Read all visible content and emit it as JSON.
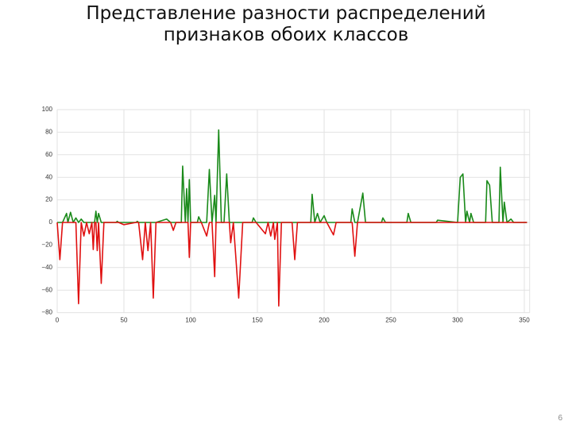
{
  "chart_data": {
    "type": "line",
    "title": "Представление разности распределений признаков обоих классов",
    "x": [
      0,
      2,
      4,
      7,
      8,
      10,
      12,
      14,
      16,
      18,
      20,
      22,
      24,
      26,
      27,
      28,
      29,
      30,
      31,
      33,
      35,
      44,
      45,
      46,
      50,
      59,
      60,
      61,
      64,
      66,
      68,
      70,
      72,
      74,
      82,
      85,
      87,
      89,
      93,
      94,
      96,
      97,
      98,
      99,
      100,
      105,
      106,
      108,
      112,
      114,
      116,
      118,
      119,
      121,
      123,
      125,
      127,
      129,
      130,
      132,
      136,
      139,
      146,
      147,
      149,
      156,
      158,
      160,
      162,
      163,
      165,
      166,
      168,
      176,
      178,
      180,
      190,
      191,
      193,
      195,
      197,
      200,
      202,
      207,
      209,
      220,
      221,
      223,
      225,
      229,
      231,
      243,
      244,
      246,
      262,
      263,
      265,
      284,
      285,
      300,
      302,
      304,
      306,
      307,
      309,
      310,
      312,
      321,
      322,
      324,
      326,
      331,
      332,
      334,
      335,
      337,
      340,
      342,
      352
    ],
    "series": [
      {
        "color": "#1a8a1a",
        "values": [
          0,
          0,
          0,
          8,
          0,
          9,
          0,
          4,
          0,
          3,
          0,
          0,
          0,
          0,
          0,
          0,
          10,
          0,
          8,
          0,
          0,
          0,
          1,
          0,
          0,
          0,
          1,
          0,
          0,
          0,
          0,
          0,
          0,
          0,
          3,
          0,
          0,
          0,
          0,
          50,
          0,
          30,
          0,
          38,
          0,
          0,
          5,
          0,
          0,
          47,
          0,
          24,
          0,
          82,
          0,
          0,
          43,
          0,
          0,
          0,
          0,
          0,
          0,
          4,
          0,
          0,
          0,
          0,
          0,
          0,
          0,
          0,
          0,
          0,
          0,
          0,
          0,
          25,
          0,
          8,
          0,
          6,
          0,
          0,
          0,
          0,
          12,
          0,
          0,
          26,
          0,
          0,
          4,
          0,
          0,
          8,
          0,
          0,
          2,
          0,
          40,
          43,
          0,
          10,
          0,
          8,
          0,
          0,
          37,
          33,
          0,
          0,
          49,
          0,
          18,
          0,
          3,
          0,
          0
        ]
      },
      {
        "color": "#e01010",
        "values": [
          0,
          -33,
          0,
          0,
          0,
          0,
          0,
          0,
          -72,
          0,
          -12,
          0,
          -10,
          0,
          -24,
          0,
          0,
          -25,
          0,
          -54,
          0,
          0,
          0,
          0,
          -2,
          0,
          0,
          0,
          -33,
          0,
          -25,
          0,
          -67,
          0,
          0,
          0,
          -7,
          0,
          0,
          0,
          0,
          0,
          0,
          -31,
          0,
          0,
          0,
          0,
          -12,
          0,
          0,
          -48,
          0,
          0,
          0,
          0,
          0,
          0,
          -18,
          0,
          -67,
          0,
          0,
          0,
          0,
          -10,
          0,
          -12,
          0,
          -15,
          0,
          -74,
          0,
          0,
          -33,
          0,
          0,
          0,
          0,
          0,
          0,
          0,
          0,
          -11,
          0,
          0,
          0,
          -30,
          0,
          0,
          0,
          0,
          0,
          0,
          0,
          0,
          0,
          0,
          0,
          0,
          0,
          0,
          0,
          0,
          0,
          0,
          0,
          0,
          0,
          0,
          0,
          0,
          0,
          0,
          0,
          0,
          0,
          0,
          0
        ]
      }
    ],
    "xlim": [
      0,
      354
    ],
    "xticks": [
      0,
      50,
      100,
      150,
      200,
      250,
      300,
      350
    ],
    "ylim": [
      -80,
      100
    ],
    "yticks": [
      {
        "value": -80,
        "label": "−80"
      },
      {
        "value": -60,
        "label": "−60"
      },
      {
        "value": -40,
        "label": "−40"
      },
      {
        "value": -20,
        "label": "−20"
      },
      0,
      20,
      40,
      60,
      80,
      100
    ],
    "grid": true
  },
  "page_number": "6"
}
